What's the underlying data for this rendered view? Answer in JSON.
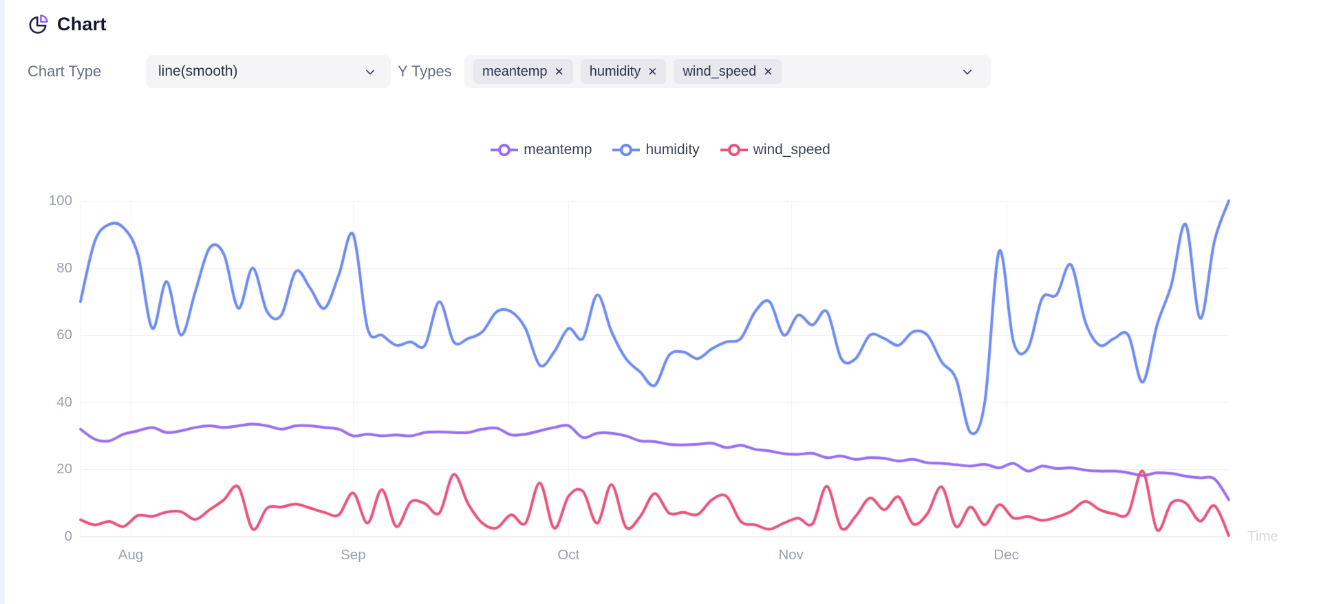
{
  "page": {
    "title": "Chart"
  },
  "controls": {
    "chart_type_label": "Chart Type",
    "chart_type_value": "line(smooth)",
    "y_types_label": "Y Types",
    "remove_icon": "✕",
    "y_type_tags": [
      {
        "label": "meantemp"
      },
      {
        "label": "humidity"
      },
      {
        "label": "wind_speed"
      }
    ]
  },
  "legend": [
    {
      "name": "meantemp",
      "color": "#976ff0"
    },
    {
      "name": "humidity",
      "color": "#6e8bf2"
    },
    {
      "name": "wind_speed",
      "color": "#e9537a"
    }
  ],
  "chart_data": {
    "type": "line",
    "smooth": true,
    "grid": true,
    "legend_position": "top-center",
    "xlabel": "Time",
    "ylabel": "",
    "ylim": [
      0,
      100
    ],
    "yticks": [
      0,
      20,
      40,
      60,
      80,
      100
    ],
    "x_range_days": [
      0,
      160
    ],
    "xticks": [
      {
        "label": "Aug",
        "day": 7
      },
      {
        "label": "Sep",
        "day": 38
      },
      {
        "label": "Oct",
        "day": 68
      },
      {
        "label": "Nov",
        "day": 99
      },
      {
        "label": "Dec",
        "day": 129
      }
    ],
    "x_days": [
      0,
      2,
      4,
      6,
      8,
      10,
      12,
      14,
      16,
      18,
      20,
      22,
      24,
      26,
      28,
      30,
      32,
      34,
      36,
      38,
      40,
      42,
      44,
      46,
      48,
      50,
      52,
      54,
      56,
      58,
      60,
      62,
      64,
      66,
      68,
      70,
      72,
      74,
      76,
      78,
      80,
      82,
      84,
      86,
      88,
      90,
      92,
      94,
      96,
      98,
      100,
      102,
      104,
      106,
      108,
      110,
      112,
      114,
      116,
      118,
      120,
      122,
      124,
      126,
      128,
      130,
      132,
      134,
      136,
      138,
      140,
      142,
      144,
      146,
      148,
      150,
      152,
      154,
      156,
      158,
      160
    ],
    "series": [
      {
        "name": "meantemp",
        "color": "#976ff0",
        "values": [
          32,
          29,
          28.5,
          30.5,
          31.5,
          32.5,
          31,
          31.5,
          32.5,
          33,
          32.5,
          33,
          33.5,
          33,
          32,
          33,
          33,
          32.5,
          32,
          30,
          30.5,
          30,
          30.3,
          30,
          31,
          31.2,
          31,
          31,
          32,
          32.3,
          30.3,
          30.5,
          31.5,
          32.5,
          33,
          29.5,
          30.8,
          30.8,
          30,
          28.5,
          28.3,
          27.5,
          27.3,
          27.5,
          27.8,
          26.5,
          27.2,
          26,
          25.5,
          24.7,
          24.5,
          24.8,
          23.5,
          24,
          23,
          23.5,
          23.3,
          22.5,
          23,
          22,
          21.8,
          21.4,
          21,
          21.5,
          20.5,
          21.8,
          19.5,
          21,
          20.3,
          20.5,
          19.8,
          19.5,
          19.5,
          19,
          18.2,
          19,
          18.8,
          18,
          17.5,
          17.2,
          11
        ]
      },
      {
        "name": "humidity",
        "color": "#6e8bf2",
        "values": [
          70,
          88,
          93,
          92,
          84,
          62,
          76,
          60,
          73,
          86,
          84,
          68,
          80,
          67,
          66,
          79,
          74,
          68,
          78,
          90,
          62,
          60,
          57,
          58,
          57,
          70,
          58,
          59,
          61,
          67,
          67,
          62,
          51,
          55,
          62,
          59,
          72,
          61,
          53,
          49,
          45,
          54,
          55,
          53,
          56,
          58,
          59,
          67,
          70,
          60,
          66,
          63,
          67,
          53,
          53,
          60,
          59,
          57,
          61,
          60,
          52,
          47,
          31,
          40,
          85,
          58,
          56,
          71,
          72,
          81,
          64,
          57,
          59,
          60,
          46,
          63,
          75,
          93,
          65,
          88,
          100
        ]
      },
      {
        "name": "wind_speed",
        "color": "#e9537a",
        "values": [
          5,
          3.5,
          4.5,
          3,
          6.3,
          6,
          7.3,
          7.4,
          5.1,
          8,
          11,
          14.8,
          2.2,
          8.5,
          8.8,
          9.7,
          8.5,
          7.2,
          6.5,
          13,
          4,
          14,
          3,
          10.3,
          9.8,
          7,
          18.5,
          9.8,
          4,
          2.6,
          6.5,
          4,
          16,
          2.5,
          12,
          13.5,
          4,
          15.5,
          2.8,
          6,
          12.8,
          7,
          7.2,
          6.6,
          11,
          12,
          4.5,
          3.5,
          2.2,
          4,
          5.5,
          3.8,
          15,
          2.5,
          6,
          11.5,
          8,
          11.8,
          3.8,
          6.8,
          14.8,
          3,
          8.8,
          3.5,
          9.5,
          5.5,
          6,
          4.8,
          5.8,
          7.5,
          10.5,
          8,
          6.8,
          7,
          19.5,
          2,
          10,
          10,
          4.6,
          9.2,
          0.3
        ]
      }
    ]
  }
}
